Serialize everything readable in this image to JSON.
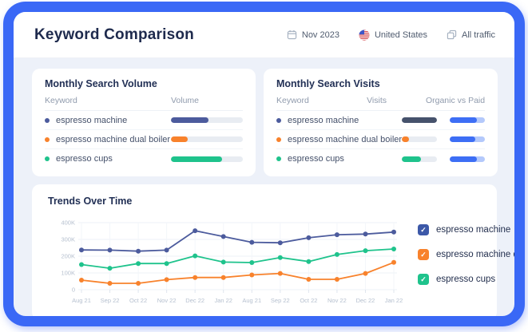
{
  "header": {
    "title": "Keyword Comparison",
    "controls": {
      "date": "Nov 2023",
      "country": "United States",
      "traffic": "All traffic"
    }
  },
  "volume_panel": {
    "title": "Monthly Search Volume",
    "columns": {
      "keyword": "Keyword",
      "volume": "Volume"
    },
    "rows": [
      {
        "keyword": "espresso machine",
        "color": "#4C5B9D",
        "volume_pct": 52
      },
      {
        "keyword": "espresso machine dual boiler",
        "color": "#F8822C",
        "volume_pct": 23
      },
      {
        "keyword": "espresso cups",
        "color": "#1FC38C",
        "volume_pct": 71
      }
    ]
  },
  "visits_panel": {
    "title": "Monthly Search Visits",
    "columns": {
      "keyword": "Keyword",
      "visits": "Visits",
      "organic": "Organic vs Paid"
    },
    "organic_color": "#3D6EF5",
    "paid_color": "#B4C9FB",
    "rows": [
      {
        "keyword": "espresso machine",
        "color": "#4C5B9D",
        "bar_color": "#46526C",
        "visits_pct": 100,
        "organic_pct": 78
      },
      {
        "keyword": "espresso machine dual boiler",
        "color": "#F8822C",
        "bar_color": "#F8822C",
        "visits_pct": 21,
        "organic_pct": 73
      },
      {
        "keyword": "espresso cups",
        "color": "#1FC38C",
        "bar_color": "#1FC38C",
        "visits_pct": 54,
        "organic_pct": 76
      }
    ]
  },
  "trends_panel": {
    "title": "Trends Over Time",
    "legend": [
      {
        "label": "espresso machine",
        "color": "#3C58A8",
        "checked": true
      },
      {
        "label": "espresso machine du...",
        "color": "#F8822C",
        "checked": true
      },
      {
        "label": "espresso cups",
        "color": "#1FC38C",
        "checked": true
      }
    ]
  },
  "chart_data": {
    "type": "line",
    "title": "Trends Over Time",
    "x": [
      "Aug 21",
      "Sep 22",
      "Oct 22",
      "Nov 22",
      "Dec 22",
      "Jan 22",
      "Aug 21",
      "Sep 22",
      "Oct 22",
      "Nov 22",
      "Dec 22",
      "Jan 22"
    ],
    "series": [
      {
        "name": "espresso machine",
        "color": "#4C5B9D",
        "values": [
          237000,
          236000,
          230000,
          236000,
          352000,
          317000,
          283000,
          280000,
          310000,
          328000,
          332000,
          344000
        ]
      },
      {
        "name": "espresso machine dual boiler",
        "color": "#F8822C",
        "values": [
          57000,
          38000,
          38000,
          60000,
          73000,
          73000,
          88000,
          97000,
          62000,
          62000,
          97000,
          163000
        ]
      },
      {
        "name": "espresso cups",
        "color": "#1FC38C",
        "values": [
          150000,
          128000,
          156000,
          156000,
          202000,
          165000,
          162000,
          192000,
          168000,
          210000,
          233000,
          243000
        ]
      }
    ],
    "ylim": [
      0,
      400000
    ],
    "yticks": [
      "0",
      "100K",
      "200K",
      "300K",
      "400K"
    ],
    "grid": true,
    "legend_position": "right"
  },
  "colors": {
    "frame": "#3A68F6",
    "body_bg": "#EDF1F9",
    "panel_bg": "#FFFFFF",
    "title_navy": "#1E2A4D",
    "muted_text": "#909BAD",
    "axis_text": "#B6C0CF",
    "track": "#E8ECF2"
  }
}
